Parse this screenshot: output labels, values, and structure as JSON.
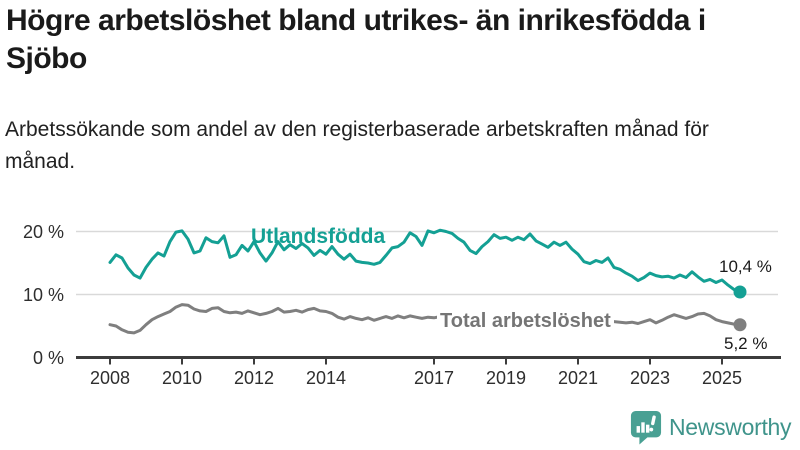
{
  "header": {
    "title": "Högre arbetslöshet bland utrikes- än inrikesfödda i Sjöbo",
    "subtitle": "Arbetssökande som andel av den registerbaserade arbetskraften månad för månad."
  },
  "chart_data": {
    "type": "line",
    "x_unit": "decimal_year",
    "x_start": 2008.0,
    "x_step_years": 0.16667,
    "xticks": [
      2008,
      2010,
      2012,
      2014,
      2017,
      2019,
      2021,
      2023,
      2025
    ],
    "yticks": [
      {
        "v": 0,
        "label": "0 %"
      },
      {
        "v": 10,
        "label": "10 %"
      },
      {
        "v": 20,
        "label": "20 %"
      }
    ],
    "ylim": [
      0,
      22
    ],
    "grid": "horizontal",
    "axis_color": "#3c3c3c",
    "grid_color": "#d9d9d9",
    "series": [
      {
        "name": "Utlandsfödda",
        "color": "#14a094",
        "end_label": "10,4 %",
        "end_value": 10.4,
        "values": [
          15.1,
          16.3,
          15.8,
          14.2,
          13.1,
          12.6,
          14.3,
          15.6,
          16.6,
          16.1,
          18.4,
          19.9,
          20.1,
          18.8,
          16.6,
          16.9,
          19.0,
          18.4,
          18.2,
          19.3,
          15.9,
          16.3,
          17.8,
          16.9,
          18.4,
          16.6,
          15.3,
          16.6,
          18.4,
          17.1,
          17.9,
          17.3,
          18.1,
          17.4,
          16.2,
          17.0,
          16.4,
          17.6,
          16.4,
          15.6,
          16.4,
          15.3,
          15.1,
          15.0,
          14.8,
          15.1,
          16.2,
          17.4,
          17.6,
          18.3,
          19.8,
          19.2,
          17.8,
          20.1,
          19.8,
          20.2,
          20.0,
          19.7,
          18.9,
          18.3,
          17.0,
          16.5,
          17.6,
          18.4,
          19.5,
          18.9,
          19.1,
          18.6,
          19.1,
          18.7,
          19.6,
          18.5,
          18.0,
          17.5,
          18.3,
          17.8,
          18.3,
          17.2,
          16.4,
          15.2,
          14.9,
          15.4,
          15.1,
          15.8,
          14.3,
          14.0,
          13.4,
          12.9,
          12.2,
          12.7,
          13.4,
          13.0,
          12.8,
          12.9,
          12.6,
          13.1,
          12.7,
          13.6,
          12.8,
          12.1,
          12.4,
          11.9,
          12.3,
          11.5,
          10.8,
          10.4
        ]
      },
      {
        "name": "Total arbetslöshet",
        "color": "#7f7f7f",
        "end_label": "5,2 %",
        "end_value": 5.2,
        "values": [
          5.2,
          5.0,
          4.4,
          4.0,
          3.9,
          4.3,
          5.2,
          6.0,
          6.5,
          6.9,
          7.3,
          8.0,
          8.4,
          8.3,
          7.7,
          7.4,
          7.3,
          7.8,
          7.9,
          7.3,
          7.1,
          7.2,
          7.0,
          7.4,
          7.1,
          6.8,
          7.0,
          7.3,
          7.8,
          7.2,
          7.3,
          7.5,
          7.2,
          7.6,
          7.8,
          7.4,
          7.3,
          7.0,
          6.4,
          6.1,
          6.5,
          6.2,
          6.0,
          6.3,
          5.9,
          6.2,
          6.5,
          6.2,
          6.6,
          6.3,
          6.6,
          6.4,
          6.2,
          6.4,
          6.3,
          6.5,
          6.2,
          6.4,
          6.5,
          6.3,
          6.1,
          6.0,
          5.9,
          6.1,
          6.3,
          6.2,
          6.0,
          6.2,
          6.1,
          6.3,
          6.5,
          6.4,
          6.6,
          7.0,
          7.3,
          7.1,
          6.9,
          6.7,
          6.5,
          6.3,
          6.1,
          6.0,
          5.9,
          5.8,
          5.7,
          5.6,
          5.5,
          5.6,
          5.4,
          5.7,
          6.0,
          5.5,
          5.9,
          6.4,
          6.8,
          6.5,
          6.2,
          6.5,
          6.9,
          7.0,
          6.6,
          6.0,
          5.7,
          5.5,
          5.3,
          5.2
        ]
      }
    ]
  },
  "footer": {
    "brand": "Newsworthy",
    "brand_color": "#3f948b"
  }
}
